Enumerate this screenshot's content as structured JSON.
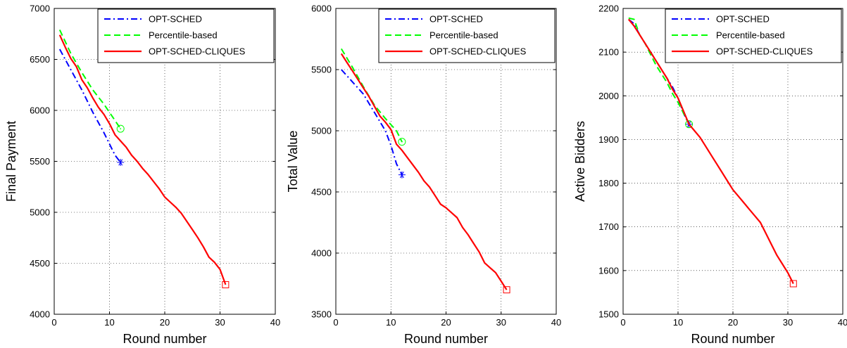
{
  "chart_data": [
    {
      "type": "line",
      "xlabel": "Round number",
      "ylabel": "Final Payment",
      "xlim": [
        0,
        40
      ],
      "ylim": [
        4000,
        7000
      ],
      "xticks": [
        0,
        10,
        20,
        30,
        40
      ],
      "yticks": [
        4000,
        4500,
        5000,
        5500,
        6000,
        6500,
        7000
      ],
      "grid": true,
      "legend_position": "top-right",
      "series": [
        {
          "name": "OPT-SCHED",
          "color": "#0000ff",
          "dash": "dashdot",
          "end_marker": "asterisk",
          "x": [
            1,
            3,
            5,
            7,
            9,
            11,
            12
          ],
          "y": [
            6600,
            6400,
            6200,
            5980,
            5780,
            5560,
            5490
          ]
        },
        {
          "name": "Percentile-based",
          "color": "#00ff00",
          "dash": "dashed",
          "end_marker": "circle",
          "x": [
            1,
            3,
            5,
            7,
            9,
            11,
            12
          ],
          "y": [
            6790,
            6560,
            6370,
            6200,
            6060,
            5900,
            5820
          ]
        },
        {
          "name": "OPT-SCHED-CLIQUES",
          "color": "#ff0000",
          "dash": "solid",
          "end_marker": "square",
          "x": [
            1,
            2,
            3,
            4,
            5,
            6,
            7,
            8,
            9,
            10,
            11,
            12,
            13,
            14,
            15,
            16,
            17,
            18,
            19,
            20,
            21,
            22,
            23,
            24,
            25,
            26,
            27,
            28,
            29,
            30,
            31
          ],
          "y": [
            6740,
            6620,
            6510,
            6430,
            6300,
            6220,
            6120,
            6030,
            5960,
            5870,
            5760,
            5700,
            5640,
            5560,
            5500,
            5430,
            5370,
            5300,
            5230,
            5150,
            5100,
            5050,
            4990,
            4910,
            4830,
            4750,
            4660,
            4560,
            4510,
            4440,
            4290
          ]
        }
      ]
    },
    {
      "type": "line",
      "xlabel": "Round number",
      "ylabel": "Total Value",
      "xlim": [
        0,
        40
      ],
      "ylim": [
        3500,
        6000
      ],
      "xticks": [
        0,
        10,
        20,
        30,
        40
      ],
      "yticks": [
        3500,
        4000,
        4500,
        5000,
        5500,
        6000
      ],
      "grid": true,
      "legend_position": "top-right",
      "series": [
        {
          "name": "OPT-SCHED",
          "color": "#0000ff",
          "dash": "dashdot",
          "end_marker": "asterisk",
          "x": [
            1,
            3,
            5,
            7,
            9,
            10,
            11,
            12
          ],
          "y": [
            5500,
            5400,
            5300,
            5150,
            5000,
            4880,
            4730,
            4640
          ]
        },
        {
          "name": "Percentile-based",
          "color": "#00ff00",
          "dash": "dashed",
          "end_marker": "circle",
          "x": [
            1,
            3,
            5,
            7,
            9,
            11,
            12
          ],
          "y": [
            5670,
            5520,
            5360,
            5210,
            5100,
            5000,
            4910
          ]
        },
        {
          "name": "OPT-SCHED-CLIQUES",
          "color": "#ff0000",
          "dash": "solid",
          "end_marker": "square",
          "x": [
            1,
            2,
            3,
            4,
            5,
            6,
            7,
            8,
            9,
            10,
            11,
            12,
            13,
            14,
            15,
            16,
            17,
            18,
            19,
            20,
            21,
            22,
            23,
            24,
            25,
            26,
            27,
            28,
            29,
            30,
            31
          ],
          "y": [
            5630,
            5560,
            5490,
            5420,
            5350,
            5280,
            5200,
            5120,
            5070,
            5010,
            4890,
            4840,
            4780,
            4720,
            4660,
            4590,
            4540,
            4470,
            4400,
            4370,
            4330,
            4290,
            4210,
            4150,
            4080,
            4010,
            3920,
            3880,
            3840,
            3770,
            3700
          ]
        }
      ]
    },
    {
      "type": "line",
      "xlabel": "Round number",
      "ylabel": "Active Bidders",
      "xlim": [
        0,
        40
      ],
      "ylim": [
        1500,
        2200
      ],
      "xticks": [
        0,
        10,
        20,
        30,
        40
      ],
      "yticks": [
        1500,
        1600,
        1700,
        1800,
        1900,
        2000,
        2100,
        2200
      ],
      "grid": true,
      "legend_position": "top-right",
      "series": [
        {
          "name": "OPT-SCHED",
          "color": "#0000ff",
          "dash": "dashdot",
          "end_marker": "asterisk",
          "x": [
            1,
            2,
            3,
            4,
            5,
            6,
            7,
            8,
            9,
            10,
            11,
            12
          ],
          "y": [
            2175,
            2165,
            2140,
            2120,
            2100,
            2080,
            2060,
            2040,
            2020,
            1995,
            1960,
            1935
          ]
        },
        {
          "name": "Percentile-based",
          "color": "#00ff00",
          "dash": "dashed",
          "end_marker": "circle",
          "x": [
            1,
            2,
            3,
            4,
            5,
            6,
            7,
            8,
            9,
            10,
            11,
            12
          ],
          "y": [
            2178,
            2175,
            2140,
            2120,
            2095,
            2070,
            2050,
            2030,
            2005,
            1985,
            1960,
            1935
          ]
        },
        {
          "name": "OPT-SCHED-CLIQUES",
          "color": "#ff0000",
          "dash": "solid",
          "end_marker": "square",
          "x": [
            1,
            2,
            3,
            4,
            5,
            6,
            7,
            8,
            9,
            10,
            11,
            12,
            13,
            14,
            15,
            16,
            17,
            18,
            19,
            20,
            21,
            22,
            23,
            24,
            25,
            26,
            27,
            28,
            29,
            30,
            31
          ],
          "y": [
            2175,
            2160,
            2140,
            2120,
            2100,
            2080,
            2060,
            2040,
            2015,
            1995,
            1965,
            1935,
            1920,
            1905,
            1885,
            1865,
            1845,
            1825,
            1805,
            1785,
            1770,
            1755,
            1740,
            1725,
            1710,
            1685,
            1660,
            1635,
            1615,
            1595,
            1570
          ]
        }
      ]
    }
  ]
}
